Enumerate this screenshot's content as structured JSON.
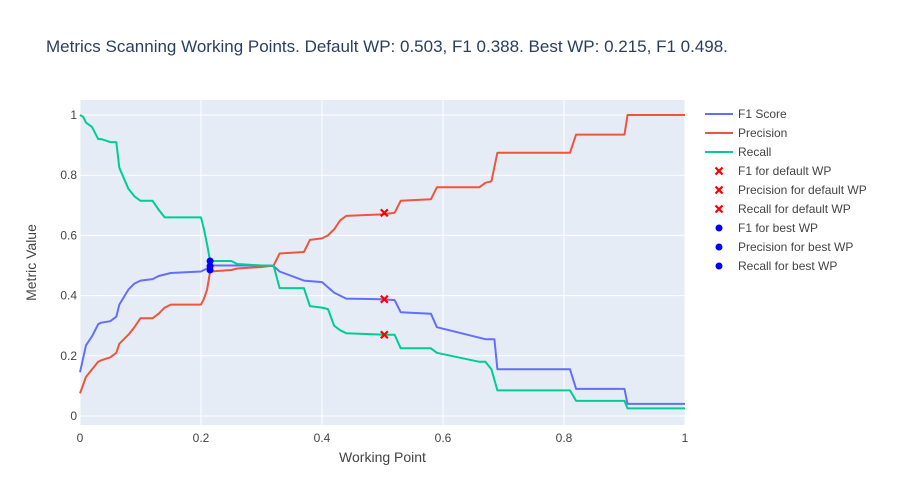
{
  "chart_data": {
    "type": "line",
    "title": "Metrics Scanning Working Points. Default WP: 0.503,  F1 0.388. Best WP: 0.215, F1 0.498.",
    "xlabel": "Working Point",
    "ylabel": "Metric Value",
    "xlim": [
      0,
      1
    ],
    "ylim": [
      -0.03,
      1.05
    ],
    "x_ticks": [
      0,
      0.2,
      0.4,
      0.6,
      0.8,
      1
    ],
    "x_tick_labels": [
      "0",
      "0.2",
      "0.4",
      "0.6",
      "0.8",
      "1"
    ],
    "y_ticks": [
      0,
      0.2,
      0.4,
      0.6,
      0.8,
      1
    ],
    "y_tick_labels": [
      "0",
      "0.2",
      "0.4",
      "0.6",
      "0.8",
      "1"
    ],
    "grid": true,
    "legend_position": "right",
    "plot_background": "#e5ecf6",
    "series": [
      {
        "name": "F1 Score",
        "color": "#636efa",
        "mode": "line",
        "x": [
          0,
          0.01,
          0.02,
          0.03,
          0.035,
          0.05,
          0.06,
          0.065,
          0.08,
          0.09,
          0.1,
          0.12,
          0.13,
          0.14,
          0.15,
          0.2,
          0.21,
          0.215,
          0.22,
          0.25,
          0.3,
          0.32,
          0.33,
          0.37,
          0.4,
          0.42,
          0.43,
          0.44,
          0.5,
          0.52,
          0.53,
          0.58,
          0.59,
          0.67,
          0.685,
          0.69,
          0.81,
          0.82,
          0.9,
          0.905,
          1
        ],
        "y": [
          0.145,
          0.235,
          0.265,
          0.305,
          0.31,
          0.315,
          0.33,
          0.37,
          0.42,
          0.44,
          0.45,
          0.455,
          0.465,
          0.47,
          0.475,
          0.48,
          0.49,
          0.498,
          0.5,
          0.5,
          0.5,
          0.498,
          0.48,
          0.45,
          0.445,
          0.41,
          0.4,
          0.39,
          0.388,
          0.385,
          0.345,
          0.34,
          0.295,
          0.255,
          0.255,
          0.155,
          0.155,
          0.09,
          0.09,
          0.04,
          0.04
        ]
      },
      {
        "name": "Precision",
        "color": "#ef553b",
        "mode": "line",
        "x": [
          0,
          0.01,
          0.02,
          0.03,
          0.035,
          0.05,
          0.06,
          0.065,
          0.08,
          0.09,
          0.1,
          0.12,
          0.13,
          0.14,
          0.15,
          0.2,
          0.205,
          0.21,
          0.215,
          0.25,
          0.26,
          0.3,
          0.32,
          0.33,
          0.37,
          0.38,
          0.4,
          0.41,
          0.42,
          0.43,
          0.44,
          0.5,
          0.52,
          0.53,
          0.58,
          0.59,
          0.66,
          0.67,
          0.68,
          0.69,
          0.81,
          0.82,
          0.9,
          0.905,
          1
        ],
        "y": [
          0.075,
          0.13,
          0.155,
          0.18,
          0.185,
          0.195,
          0.21,
          0.24,
          0.27,
          0.295,
          0.325,
          0.325,
          0.34,
          0.36,
          0.37,
          0.37,
          0.39,
          0.42,
          0.48,
          0.485,
          0.49,
          0.495,
          0.5,
          0.54,
          0.545,
          0.585,
          0.59,
          0.6,
          0.62,
          0.65,
          0.665,
          0.67,
          0.675,
          0.715,
          0.72,
          0.76,
          0.76,
          0.775,
          0.78,
          0.875,
          0.875,
          0.935,
          0.935,
          1,
          1
        ]
      },
      {
        "name": "Recall",
        "color": "#00cc96",
        "mode": "line",
        "x": [
          0,
          0.005,
          0.01,
          0.02,
          0.03,
          0.035,
          0.05,
          0.06,
          0.065,
          0.08,
          0.09,
          0.1,
          0.12,
          0.13,
          0.14,
          0.15,
          0.2,
          0.205,
          0.21,
          0.215,
          0.25,
          0.26,
          0.3,
          0.32,
          0.33,
          0.37,
          0.38,
          0.4,
          0.41,
          0.42,
          0.43,
          0.44,
          0.5,
          0.52,
          0.53,
          0.58,
          0.59,
          0.66,
          0.67,
          0.68,
          0.69,
          0.81,
          0.82,
          0.9,
          0.905,
          1
        ],
        "y": [
          1,
          0.995,
          0.975,
          0.96,
          0.92,
          0.92,
          0.91,
          0.91,
          0.825,
          0.755,
          0.73,
          0.715,
          0.715,
          0.685,
          0.66,
          0.66,
          0.66,
          0.62,
          0.57,
          0.515,
          0.515,
          0.505,
          0.5,
          0.5,
          0.425,
          0.425,
          0.365,
          0.36,
          0.355,
          0.3,
          0.285,
          0.275,
          0.27,
          0.27,
          0.225,
          0.225,
          0.21,
          0.18,
          0.18,
          0.155,
          0.085,
          0.085,
          0.05,
          0.05,
          0.025,
          0.025
        ]
      },
      {
        "name": "F1 for default WP",
        "color": "#ff0000",
        "mode": "marker",
        "symbol": "x",
        "x": [
          0.503
        ],
        "y": [
          0.388
        ]
      },
      {
        "name": "Precision for default WP",
        "color": "#ff0000",
        "mode": "marker",
        "symbol": "x",
        "x": [
          0.503
        ],
        "y": [
          0.675
        ]
      },
      {
        "name": "Recall for default WP",
        "color": "#ff0000",
        "mode": "marker",
        "symbol": "x",
        "x": [
          0.503
        ],
        "y": [
          0.27
        ]
      },
      {
        "name": "F1 for best WP",
        "color": "#0000ff",
        "mode": "marker",
        "symbol": "circle",
        "x": [
          0.215
        ],
        "y": [
          0.498
        ]
      },
      {
        "name": "Precision for best WP",
        "color": "#0000ff",
        "mode": "marker",
        "symbol": "circle",
        "x": [
          0.215
        ],
        "y": [
          0.485
        ]
      },
      {
        "name": "Recall for best WP",
        "color": "#0000ff",
        "mode": "marker",
        "symbol": "circle",
        "x": [
          0.215
        ],
        "y": [
          0.515
        ]
      }
    ]
  }
}
